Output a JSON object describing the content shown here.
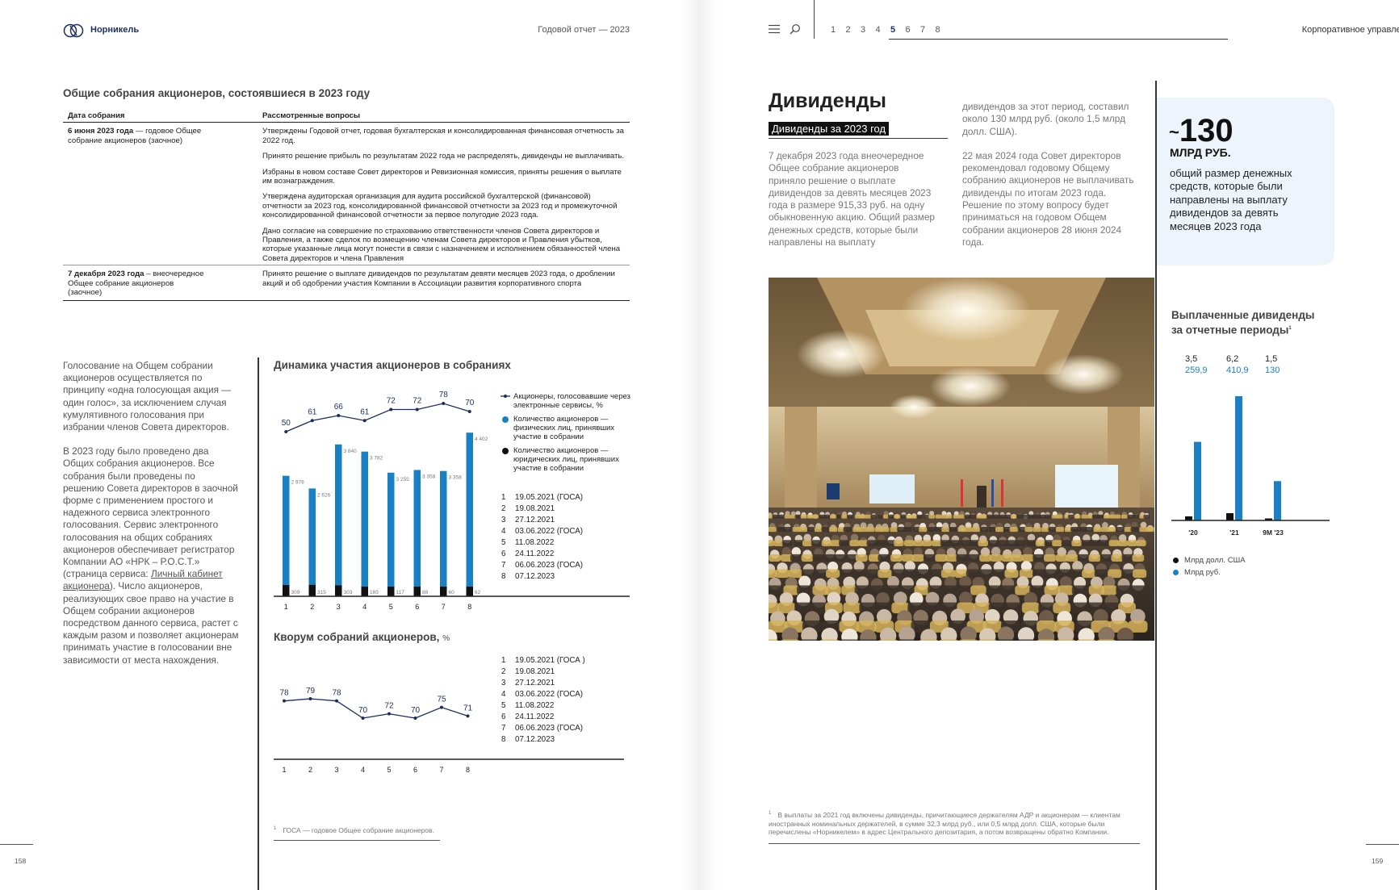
{
  "left_page": {
    "brand": "Норникель",
    "report_title": "Годовой отчет — 2023",
    "meetings_title": "Общие собрания акционеров, состоявшиеся в 2023 году",
    "table": {
      "col_date": "Дата собрания",
      "col_issues": "Рассмотренные вопросы",
      "rows": [
        {
          "date_bold": "6 июня 2023 года",
          "date_rest": " — годовое Общее собрание акционеров (заочное)",
          "issues": [
            "Утверждены Годовой отчет, годовая бухгалтерская и консолидированная финансовая отчетность за 2022 год.",
            "Принято решение прибыль по результатам 2022 года не распределять, дивиденды не выплачивать.",
            "Избраны в новом составе Совет директоров и Ревизионная комиссия, приняты решения о выплате им вознаграждения.",
            "Утверждена аудиторская организация для аудита российской бухгалтерской (финансовой) отчетности за 2023 год, консолидированной финансовой отчетности за 2023 год и промежуточной консолидированной финансовой отчетности за первое полугодие 2023 года.",
            "Дано согласие на совершение по страхованию ответственности членов Совета директоров и Правления, а также сделок по возмещению членам Совета директоров и Правления убытков, которые указанные лица могут понести в связи с назначением и исполнением обязанностей члена Совета директоров и члена Правления"
          ]
        },
        {
          "date_bold": "7 декабря 2023 года",
          "date_rest": " – внеочередное Общее собрание акционеров (заочное)",
          "issues": [
            "Принято решение о выплате дивидендов по результатам девяти месяцев 2023 года, о дроблении акций и об одобрении участия Компании в Ассоциации развития корпоративного спорта"
          ]
        }
      ]
    },
    "voting_text": {
      "p1": "Голосование на Общем собрании акционеров осуществляется по принципу «одна голосующая акция — один голос», за исключением случая кумулятивного голосования при избрании членов Совета директоров.",
      "p2_a": "В 2023 году было проведено два Общих собрания акционеров. Все собрания были проведены по решению Совета директоров в заочной форме с применением простого и надежного сервиса электронного голосования. Сервис электронного голосования на общих собраниях акционеров обеспечивает регистратор Компании АО «НРК – Р.О.С.Т.» (страница сервиса: ",
      "p2_link": "Личный кабинет акционера",
      "p2_b": "). Число акционеров, реализующих свое право на участие в Общем собрании акционеров посредством данного сервиса, растет с каждым разом и позволяет акционерам принимать участие в голосовании вне зависимости от места нахождения."
    },
    "participation_chart": {
      "title": "Динамика участия акционеров в собраниях",
      "legend": [
        "Акционеры, голосовавшие через электронные сервисы, %",
        "Количество акционеров — физических лиц, принявших участие в собрании",
        "Количество акционеров — юридических лиц, принявших участие в собрании"
      ],
      "colors": {
        "individuals": "#1a80c4",
        "legal": "#111111",
        "line": "#1b2f5e"
      },
      "dates": [
        "19.05.2021 (ГОСА)",
        "19.08.2021",
        "27.12.2021",
        "03.06.2022 (ГОСА)",
        "11.08.2022",
        "24.11.2022",
        "06.06.2023 (ГОСА)",
        "07.12.2023"
      ]
    },
    "quorum_chart": {
      "title": "Кворум собраний акционеров,",
      "unit": "%",
      "dates": [
        "19.05.2021 (ГОСА )",
        "19.08.2021",
        "27.12.2021",
        "03.06.2022 (ГОСА)",
        "11.08.2022",
        "24.11.2022",
        "06.06.2023 (ГОСА)",
        "07.12.2023"
      ]
    },
    "footnote_mark": "1",
    "footnote": "ГОСА — годовое Общее собрание акционеров.",
    "page_number": "158"
  },
  "right_page": {
    "nav_pages": [
      "1",
      "2",
      "3",
      "4",
      "5",
      "6",
      "7",
      "8"
    ],
    "nav_active": "5",
    "section": "Корпоративное управление",
    "title": "Дивиденды",
    "subtitle": "Дивиденды за 2023 год",
    "text_col1": "7 декабря 2023 года внеочередное Общее собрание акционеров приняло решение о выплате дивидендов за девять месяцев 2023 года в размере 915,33 руб. на одну обыкновенную акцию. Общий размер денежных средств, которые были направлены на выплату",
    "text_col2a": "дивидендов за этот период, составил около 130 млрд руб. (около 1,5 млрд долл. США).",
    "text_col2b": "22 мая 2024 года Совет директоров рекомендовал годовому Общему собранию акционеров не выплачивать дивиденды по итогам 2023 года. Решение по этому вопросу будет приниматься на годовом Общем собрании акционеров 28 июня 2024 года.",
    "kpi": {
      "tilde": "~",
      "value": "130",
      "unit": "МЛРД РУБ.",
      "text": "общий размер денежных средств, которые были направлены на выплату дивидендов за девять месяцев 2023 года"
    },
    "paid_chart": {
      "title": "Выплаченные дивиденды за отчетные периоды",
      "title_sup": "1",
      "legend": [
        "Млрд долл. США",
        "Млрд руб."
      ],
      "colors": {
        "usd": "#111111",
        "rub": "#1a80c4"
      }
    },
    "footnote_mark": "1",
    "footnote": "В выплаты за 2021 год включены дивиденды, причитающиеся держателям АДР и акционерам — клиентам иностранных номинальных держателей, в сумме 32,3 млрд руб., или 0,5 млрд долл. США, которые были перечислены «Норникелем» в адрес Центрального депозитария, а потом возвращены обратно Компании.",
    "page_number": "159"
  },
  "chart_data": [
    {
      "type": "bar",
      "title": "Динамика участия акционеров в собраниях",
      "categories": [
        "1",
        "2",
        "3",
        "4",
        "5",
        "6",
        "7",
        "8"
      ],
      "stacked": true,
      "series": [
        {
          "name": "Количество акционеров — юридических лиц, принявших участие в собрании",
          "values": [
            309,
            315,
            303,
            165,
            117,
            88,
            60,
            62
          ]
        },
        {
          "name": "Количество акционеров — физических лиц, принявших участие в собрании",
          "values": [
            2978,
            2626,
            3840,
            3782,
            3255,
            3358,
            3358,
            4402
          ]
        }
      ],
      "line_series": {
        "name": "Акционеры, голосовавшие через электронные сервисы, %",
        "values": [
          50,
          61,
          66,
          61,
          72,
          72,
          78,
          70
        ]
      },
      "value_labels": {
        "individuals": [
          "2 978",
          "2 626",
          "3 840",
          "3 782",
          "3 255",
          "3 358",
          "3 358",
          "4 402"
        ],
        "legal": [
          "309",
          "315",
          "303",
          "165",
          "117",
          "88",
          "60",
          "62"
        ]
      },
      "legend_position": "right"
    },
    {
      "type": "line",
      "title": "Кворум собраний акционеров, %",
      "x": [
        "1",
        "2",
        "3",
        "4",
        "5",
        "6",
        "7",
        "8"
      ],
      "series": [
        {
          "values": [
            78,
            79,
            78,
            70,
            72,
            70,
            75,
            71
          ]
        }
      ],
      "ylim": [
        60,
        85
      ]
    },
    {
      "type": "bar",
      "title": "Выплаченные дивиденды за отчетные периоды",
      "categories": [
        "'20",
        "'21",
        "9M '23"
      ],
      "series": [
        {
          "name": "Млрд долл. США",
          "values": [
            3.5,
            6.2,
            1.5
          ]
        },
        {
          "name": "Млрд руб.",
          "values": [
            259.9,
            410.9,
            130
          ]
        }
      ],
      "value_labels": {
        "usd": [
          "3,5",
          "6,2",
          "1,5"
        ],
        "rub": [
          "259,9",
          "410,9",
          "130"
        ]
      },
      "legend_position": "bottom"
    }
  ]
}
